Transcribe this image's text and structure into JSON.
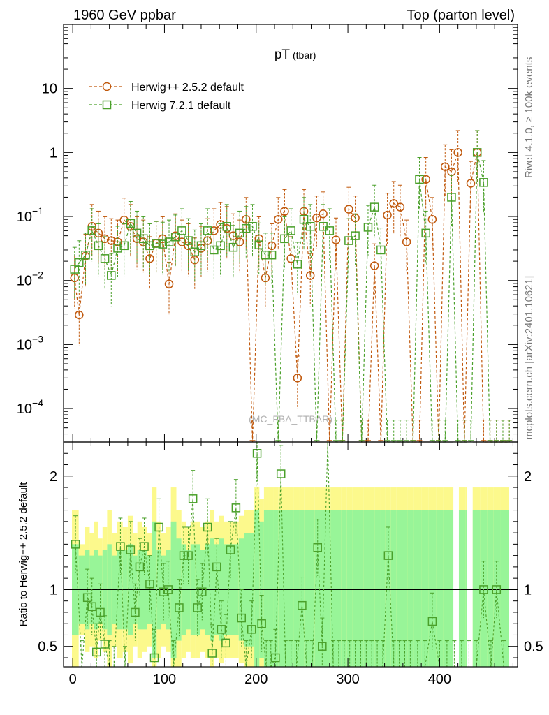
{
  "header": {
    "left": "1960 GeV ppbar",
    "right": "Top (parton level)"
  },
  "side_labels": {
    "rivet": "Rivet 4.1.0, ≥ 100k events",
    "mcplots": "mcplots.cern.ch [arXiv:2401.10621]"
  },
  "chart_data": [
    {
      "type": "line",
      "panel": "main",
      "title": "pT",
      "title_sub": "(tbar)",
      "watermark": "(MC_FBA_TTBAR)",
      "yscale": "log",
      "xlim": [
        -10,
        485
      ],
      "ylim": [
        3e-05,
        100
      ],
      "yticks": [
        {
          "value": 0.0001,
          "base": "10",
          "exp": "−4"
        },
        {
          "value": 0.001,
          "base": "10",
          "exp": "−3"
        },
        {
          "value": 0.01,
          "base": "10",
          "exp": "−2"
        },
        {
          "value": 0.1,
          "base": "10",
          "exp": "−1"
        },
        {
          "value": 1,
          "base": "1",
          "exp": ""
        },
        {
          "value": 10,
          "base": "10",
          "exp": ""
        }
      ],
      "legend_position": "top-left",
      "series": [
        {
          "name": "Herwig++ 2.5.2 default",
          "color": "#c0580c",
          "marker": "circle",
          "x": [
            2,
            7,
            14,
            21,
            28,
            35,
            42,
            49,
            56,
            63,
            70,
            77,
            84,
            91,
            98,
            105,
            112,
            119,
            126,
            133,
            140,
            147,
            154,
            161,
            168,
            175,
            182,
            189,
            196,
            203,
            210,
            217,
            224,
            231,
            238,
            245,
            252,
            259,
            266,
            273,
            280,
            287,
            294,
            301,
            308,
            315,
            322,
            329,
            336,
            343,
            350,
            357,
            364,
            371,
            378,
            385,
            392,
            399,
            406,
            413,
            420,
            427,
            434,
            441,
            448,
            455,
            462,
            469,
            476
          ],
          "y": [
            0.011,
            0.0029,
            0.024,
            0.07,
            0.055,
            0.045,
            0.042,
            0.04,
            0.088,
            0.07,
            0.045,
            0.04,
            0.022,
            0.038,
            0.045,
            0.0088,
            0.05,
            0.04,
            0.035,
            0.021,
            0.032,
            0.042,
            0.06,
            0.075,
            0.065,
            0.05,
            0.04,
            0.09,
            3e-05,
            0.045,
            0.011,
            0.035,
            0.09,
            0.12,
            0.022,
            0.0003,
            0.12,
            0.012,
            0.095,
            0.11,
            3e-05,
            0.043,
            3e-05,
            0.13,
            0.095,
            3e-05,
            3e-05,
            0.017,
            3e-05,
            0.105,
            0.16,
            0.14,
            0.04,
            3e-05,
            3e-05,
            0.38,
            0.09,
            3e-05,
            0.6,
            0.5,
            1.0,
            3e-05,
            0.33,
            1.0,
            3e-05,
            3e-05,
            3e-05,
            3e-05,
            3e-05
          ]
        },
        {
          "name": "Herwig 7.2.1 default",
          "color": "#4aa02a",
          "marker": "square",
          "x": [
            2,
            7,
            14,
            21,
            28,
            35,
            42,
            49,
            56,
            63,
            70,
            77,
            84,
            91,
            98,
            105,
            112,
            119,
            126,
            133,
            140,
            147,
            154,
            161,
            168,
            175,
            182,
            189,
            196,
            203,
            210,
            217,
            224,
            231,
            238,
            245,
            252,
            259,
            266,
            273,
            280,
            287,
            294,
            301,
            308,
            315,
            322,
            329,
            336,
            343,
            350,
            357,
            364,
            371,
            378,
            385,
            392,
            399,
            406,
            413,
            420,
            427,
            434,
            441,
            448,
            455,
            462,
            469,
            476
          ],
          "y": [
            0.015,
            0.019,
            0.025,
            0.06,
            0.035,
            0.022,
            0.012,
            0.032,
            0.035,
            0.078,
            0.055,
            0.045,
            0.035,
            0.038,
            0.037,
            0.04,
            0.048,
            0.06,
            0.042,
            0.028,
            0.035,
            0.06,
            0.03,
            0.035,
            0.07,
            0.033,
            0.055,
            0.065,
            0.07,
            0.036,
            0.025,
            0.025,
            3e-05,
            0.045,
            0.06,
            0.018,
            0.09,
            0.07,
            3e-05,
            0.07,
            0.06,
            3e-05,
            3e-05,
            0.042,
            0.05,
            3e-05,
            0.068,
            0.14,
            0.03,
            3e-05,
            3e-05,
            3e-05,
            3e-05,
            3e-05,
            0.38,
            0.055,
            3e-05,
            3e-05,
            3e-05,
            0.2,
            3e-05,
            3e-05,
            3e-05,
            1.0,
            0.34,
            3e-05,
            3e-05,
            3e-05,
            3e-05
          ]
        }
      ]
    },
    {
      "type": "line",
      "panel": "ratio",
      "ylabel": "Ratio to Herwig++ 2.5.2 default",
      "xlim": [
        -10,
        485
      ],
      "ylim": [
        0.32,
        2.3
      ],
      "xticks": [
        0,
        100,
        200,
        300,
        400
      ],
      "yticks": [
        0.5,
        1,
        2
      ],
      "reference_line": 1,
      "series": [
        {
          "name": "Herwig 7.2.1 default / Herwig++ 2.5.2 default",
          "color": "#4aa02a",
          "marker": "square",
          "x": [
            3,
            10,
            16,
            21,
            26,
            30,
            35,
            40,
            45,
            52,
            57,
            63,
            68,
            73,
            78,
            84,
            89,
            94,
            99,
            104,
            110,
            116,
            121,
            126,
            131,
            136,
            141,
            147,
            152,
            157,
            162,
            167,
            172,
            178,
            184,
            189,
            195,
            201,
            206,
            211,
            216,
            221,
            227,
            232,
            238,
            244,
            250,
            255,
            261,
            267,
            272,
            278,
            284,
            290,
            296,
            302,
            308,
            314,
            320,
            326,
            332,
            338,
            344,
            350,
            356,
            362,
            368,
            376,
            384,
            392,
            400,
            408,
            416,
            424,
            432,
            440,
            448,
            456,
            462,
            470
          ],
          "y": [
            1.4,
            0.3,
            0.93,
            0.85,
            0.45,
            0.8,
            0.52,
            0.3,
            0.25,
            1.38,
            0.25,
            1.35,
            0.8,
            1.2,
            1.38,
            1.05,
            0.4,
            1.55,
            0.98,
            1.0,
            0.3,
            0.84,
            1.3,
            1.3,
            1.8,
            0.84,
            0.98,
            1.55,
            0.44,
            1.2,
            0.65,
            0.53,
            1.35,
            1.72,
            0.75,
            0.3,
            0.65,
            2.2,
            0.7,
            0.3,
            0.3,
            0.4,
            2.02,
            0.3,
            0.3,
            0.3,
            0.86,
            0.3,
            0.3,
            1.37,
            0.5,
            2.3,
            0.3,
            0.3,
            0.3,
            0.3,
            0.3,
            0.3,
            0.3,
            0.3,
            0.3,
            0.3,
            1.3,
            0.3,
            0.3,
            0.3,
            0.3,
            0.3,
            0.3,
            0.72,
            0.3,
            0.3,
            0.3,
            0.3,
            0.3,
            0.3,
            1.0,
            0.3,
            1.0,
            0.3
          ]
        }
      ],
      "bands": {
        "yellow_half_width": [
          0.7,
          0.4,
          0.55,
          0.5,
          0.6,
          0.45,
          0.55,
          0.7,
          0.5,
          0.6,
          0.55,
          0.65,
          0.5,
          0.6,
          0.55,
          0.5,
          0.9,
          0.6,
          0.5,
          0.55,
          0.9,
          0.7,
          0.6,
          0.55,
          0.6,
          0.6,
          0.55,
          0.6,
          0.7,
          0.6,
          0.65,
          0.6,
          0.6,
          0.6,
          0.65,
          0.7,
          0.7,
          0.9,
          0.8,
          0.9,
          0.9,
          0.9,
          0.9,
          0.9,
          0.9,
          0.9,
          0.9,
          0.9,
          0.9,
          0.9,
          0.9,
          0.9,
          0.9,
          0.9,
          0.9,
          0.9,
          0.9,
          0.9,
          0.9,
          0.9,
          0.9,
          0.9,
          0.9,
          0.9,
          0.9,
          0.9,
          0.9,
          0.9,
          0.9,
          0.9,
          0.9,
          0.9,
          0.9,
          0.9,
          0.9,
          0.9,
          0.9,
          0.9,
          0.9,
          0.9
        ],
        "green_half_width": [
          0.4,
          0.3,
          0.35,
          0.3,
          0.35,
          0.3,
          0.35,
          0.4,
          0.3,
          0.35,
          0.35,
          0.4,
          0.3,
          0.35,
          0.35,
          0.3,
          0.6,
          0.35,
          0.3,
          0.35,
          0.6,
          0.45,
          0.4,
          0.35,
          0.4,
          0.4,
          0.35,
          0.4,
          0.45,
          0.4,
          0.45,
          0.4,
          0.4,
          0.4,
          0.45,
          0.5,
          0.5,
          0.7,
          0.6,
          0.7,
          0.7,
          0.7,
          0.7,
          0.7,
          0.7,
          0.7,
          0.7,
          0.7,
          0.7,
          0.7,
          0.7,
          0.7,
          0.7,
          0.7,
          0.7,
          0.7,
          0.7,
          0.7,
          0.7,
          0.7,
          0.7,
          0.7,
          0.7,
          0.7,
          0.7,
          0.7,
          0.7,
          0.7,
          0.7,
          0.7,
          0.7,
          0.7,
          0.7,
          0.7,
          0.7,
          0.7,
          0.7,
          0.7,
          0.7,
          0.7
        ]
      }
    }
  ]
}
